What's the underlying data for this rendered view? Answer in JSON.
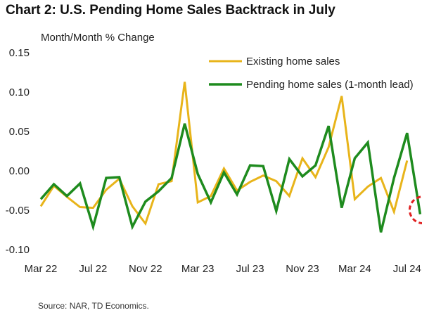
{
  "chart_data": {
    "type": "line",
    "title": "Chart 2: U.S. Pending Home Sales Backtrack in July",
    "ylabel": "Month/Month % Change",
    "source": "Source: NAR, TD Economics.",
    "ylim": [
      -0.1,
      0.15
    ],
    "yticks": [
      0.15,
      0.1,
      0.05,
      0.0,
      -0.05,
      -0.1
    ],
    "ytick_labels": [
      "0.15",
      "0.10",
      "0.05",
      "0.00",
      "-0.05",
      "-0.10"
    ],
    "x_labels": [
      {
        "index": 0,
        "label": "Mar 22"
      },
      {
        "index": 4,
        "label": "Jul 22"
      },
      {
        "index": 8,
        "label": "Nov 22"
      },
      {
        "index": 12,
        "label": "Mar 23"
      },
      {
        "index": 16,
        "label": "Jul 23"
      },
      {
        "index": 20,
        "label": "Nov 23"
      },
      {
        "index": 24,
        "label": "Mar 24"
      },
      {
        "index": 28,
        "label": "Jul 24"
      }
    ],
    "legend_position": "top-right",
    "series": [
      {
        "name": "Existing home sales",
        "color": "#E8B41A",
        "values": [
          -0.045,
          -0.019,
          -0.033,
          -0.046,
          -0.047,
          -0.024,
          -0.01,
          -0.045,
          -0.067,
          -0.017,
          -0.013,
          0.113,
          -0.04,
          -0.032,
          0.003,
          -0.025,
          -0.014,
          -0.006,
          -0.013,
          -0.032,
          0.016,
          -0.008,
          0.03,
          0.095,
          -0.036,
          -0.02,
          -0.009,
          -0.052,
          0.013
        ]
      },
      {
        "name": "Pending home sales (1-month lead)",
        "color": "#1E8B1E",
        "values": [
          -0.036,
          -0.017,
          -0.032,
          -0.016,
          -0.071,
          -0.009,
          -0.008,
          -0.071,
          -0.039,
          -0.026,
          -0.009,
          0.06,
          -0.004,
          -0.04,
          -0.002,
          -0.03,
          0.007,
          0.006,
          -0.051,
          0.015,
          -0.007,
          0.007,
          0.057,
          -0.047,
          0.016,
          0.036,
          -0.078,
          -0.009,
          0.048,
          -0.055
        ]
      }
    ],
    "annotation": {
      "index": 29,
      "value": -0.055,
      "shape": "dashed-circle",
      "color": "#E02020"
    }
  }
}
